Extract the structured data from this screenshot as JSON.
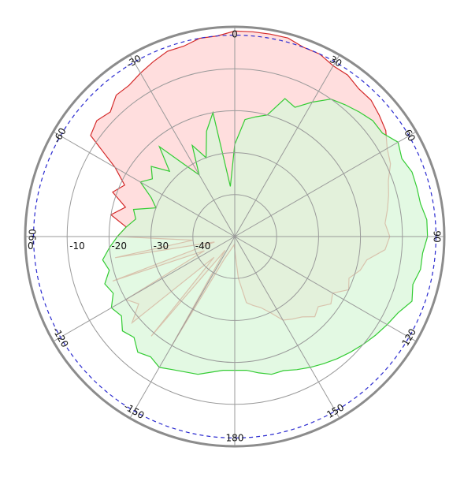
{
  "chart_data": {
    "type": "polar",
    "angle_unit": "deg",
    "rotation": "clockwise",
    "zero_direction": "top",
    "radial_range": [
      -50,
      0
    ],
    "radial_rings": [
      -40,
      -30,
      -20,
      -10
    ],
    "angle_ticks": [
      0,
      30,
      60,
      90,
      120,
      150,
      180,
      -150,
      -120,
      -90,
      -60,
      -30
    ],
    "angle_labels": [
      "0",
      "30",
      "60",
      "90",
      "120",
      "150",
      "180",
      "-150",
      "-120",
      "-90",
      "-60",
      "-30"
    ],
    "radial_labels": [
      "0",
      "-10",
      "-20",
      "-30",
      "-40"
    ],
    "reference_level": -2,
    "grid": true,
    "series": [
      {
        "color": "#d42a2a",
        "fill": "#ffdede",
        "angles": [
          -175,
          -165,
          -155,
          -150,
          -145,
          -140,
          -135,
          -130,
          -125,
          -120,
          -115,
          -110,
          -105,
          -100,
          -95,
          -90,
          -85,
          -80,
          -75,
          -70,
          -65,
          -60,
          -55,
          -50,
          -45,
          -40,
          -35,
          -30,
          -25,
          -20,
          -15,
          -10,
          -5,
          0,
          5,
          10,
          15,
          20,
          25,
          30,
          35,
          40,
          45,
          50,
          55,
          60,
          65,
          70,
          75,
          80,
          85,
          90,
          95,
          100,
          105,
          110,
          115,
          120,
          125,
          130,
          135,
          140,
          145,
          150,
          155,
          160,
          165,
          170,
          175
        ],
        "values": [
          -48,
          -47,
          -44,
          -20,
          -46,
          -19,
          -43,
          -18,
          -22,
          -20,
          -42,
          -19,
          -45,
          -21,
          -40,
          -22,
          -24,
          -20,
          -23,
          -19,
          -21,
          -17,
          -8,
          -7,
          -8,
          -6,
          -6,
          -5,
          -4,
          -3,
          -3,
          -2,
          -2,
          -1,
          -1,
          -1,
          -1,
          -2,
          -2,
          -3,
          -3,
          -4,
          -4,
          -5,
          -6,
          -8,
          -9,
          -11,
          -12,
          -13,
          -14,
          -13,
          -14,
          -18,
          -19,
          -21,
          -20,
          -23,
          -22,
          -24,
          -23,
          -25,
          -26,
          -27,
          -30,
          -32,
          -33,
          -34,
          -40
        ]
      },
      {
        "color": "#33cc33",
        "fill": "#d9f7d9",
        "angles": [
          -175,
          -165,
          -155,
          -150,
          -145,
          -140,
          -135,
          -130,
          -125,
          -120,
          -115,
          -110,
          -105,
          -100,
          -95,
          -90,
          -85,
          -80,
          -75,
          -70,
          -65,
          -60,
          -55,
          -50,
          -45,
          -40,
          -35,
          -30,
          -25,
          -20,
          -15,
          -10,
          -5,
          0,
          5,
          10,
          15,
          20,
          25,
          30,
          35,
          40,
          45,
          50,
          55,
          60,
          65,
          70,
          75,
          80,
          85,
          90,
          95,
          100,
          105,
          110,
          115,
          120,
          125,
          130,
          135,
          140,
          145,
          150,
          155,
          160,
          165,
          170,
          175
        ],
        "values": [
          -18,
          -16,
          -15,
          -14,
          -15,
          -14,
          -16,
          -15,
          -17,
          -16,
          -18,
          -17,
          -19,
          -18,
          -20,
          -22,
          -24,
          -26,
          -25,
          -30,
          -28,
          -24,
          -26,
          -24,
          -28,
          -22,
          -29,
          -33,
          -26,
          -30,
          -24,
          -20,
          -38,
          -28,
          -22,
          -21,
          -20,
          -15,
          -16,
          -13,
          -10,
          -9,
          -8,
          -7,
          -7,
          -5,
          -6,
          -5,
          -5,
          -5,
          -4,
          -4,
          -5,
          -5,
          -6,
          -5,
          -7,
          -8,
          -9,
          -10,
          -11,
          -12,
          -13,
          -14,
          -15,
          -16,
          -16,
          -17,
          -18
        ]
      }
    ]
  }
}
